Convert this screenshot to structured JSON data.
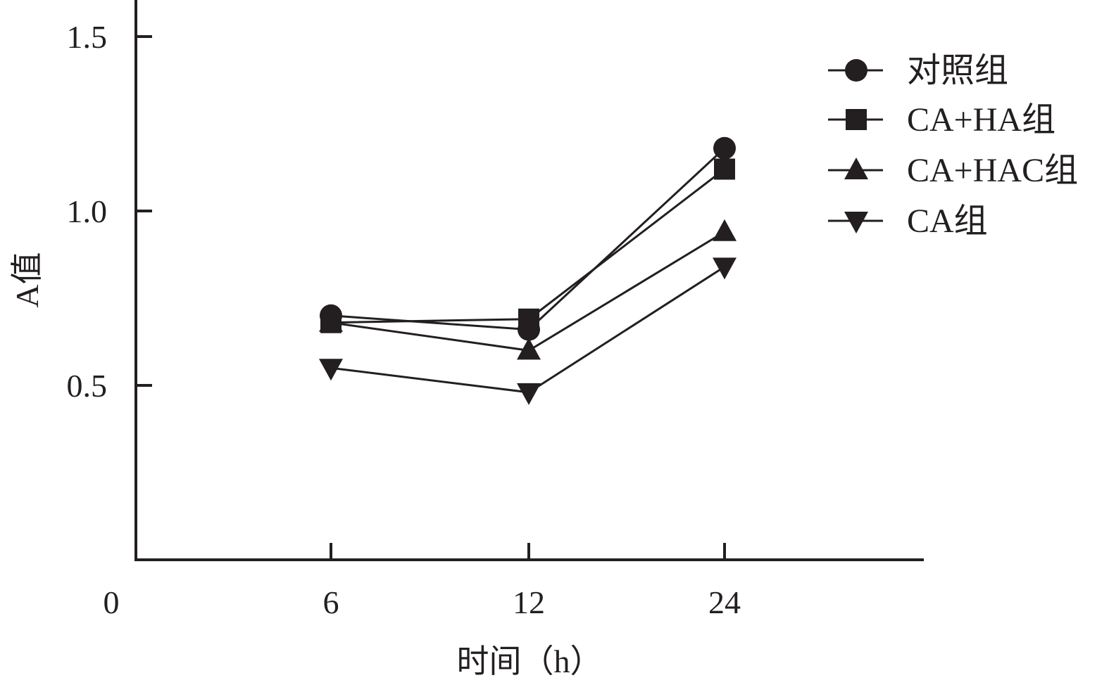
{
  "chart_data": {
    "type": "line",
    "title": "",
    "xlabel": "时间（h）",
    "ylabel": "A值",
    "x": [
      6,
      12,
      24
    ],
    "x_tick_labels": [
      "6",
      "12",
      "24"
    ],
    "origin_label": "0",
    "y_ticks": [
      0.5,
      1.0,
      1.5
    ],
    "y_tick_labels": [
      "0.5",
      "1.0",
      "1.5"
    ],
    "ylim": [
      0,
      1.6
    ],
    "grid": false,
    "legend_position": "top-right",
    "series": [
      {
        "name": "对照组",
        "marker": "circle",
        "values": [
          0.7,
          0.66,
          1.18
        ]
      },
      {
        "name": "CA+HA组",
        "marker": "square",
        "values": [
          0.68,
          0.69,
          1.12
        ]
      },
      {
        "name": "CA+HAC组",
        "marker": "triangle-up",
        "values": [
          0.68,
          0.6,
          0.94
        ]
      },
      {
        "name": "CA组",
        "marker": "triangle-down",
        "values": [
          0.55,
          0.48,
          0.84
        ]
      }
    ],
    "colors": {
      "ink": "#231f20",
      "background": "#ffffff"
    }
  }
}
